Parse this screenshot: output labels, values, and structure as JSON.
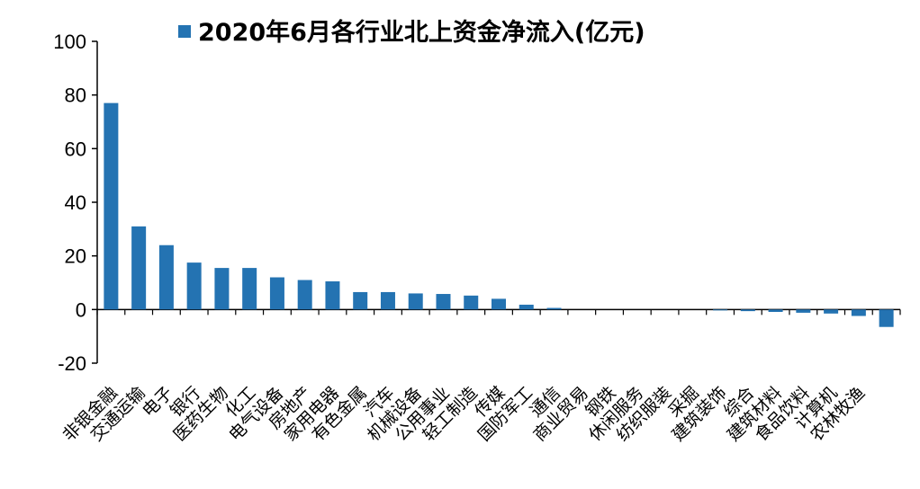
{
  "chart_data": {
    "type": "bar",
    "legend_position": "top-center",
    "series": [
      {
        "name": "2020年6月各行业北上资金净流入(亿元)",
        "color": "#2473B2",
        "values": [
          77,
          31,
          24,
          17.5,
          15.5,
          15.5,
          12,
          11,
          10.5,
          6.5,
          6.5,
          6,
          5.8,
          5.2,
          4,
          1.8,
          0.6,
          0,
          0,
          0,
          0,
          0,
          -0.3,
          -0.6,
          -0.9,
          -1.2,
          -1.5,
          -2.4,
          -6.5
        ]
      }
    ],
    "categories": [
      "非银金融",
      "交通运输",
      "电子",
      "银行",
      "医药生物",
      "化工",
      "电气设备",
      "房地产",
      "家用电器",
      "有色金属",
      "汽车",
      "机械设备",
      "公用事业",
      "轻工制造",
      "传媒",
      "国防军工",
      "通信",
      "商业贸易",
      "钢铁",
      "休闲服务",
      "纺织服装",
      "采掘",
      "建筑装饰",
      "综合",
      "建筑材料",
      "食品饮料",
      "计算机",
      "农林牧渔",
      ""
    ],
    "y_ticks": [
      "100",
      "80",
      "60",
      "40",
      "20",
      "0",
      "-20"
    ],
    "ylim": [
      -20,
      100
    ],
    "grid": false
  }
}
